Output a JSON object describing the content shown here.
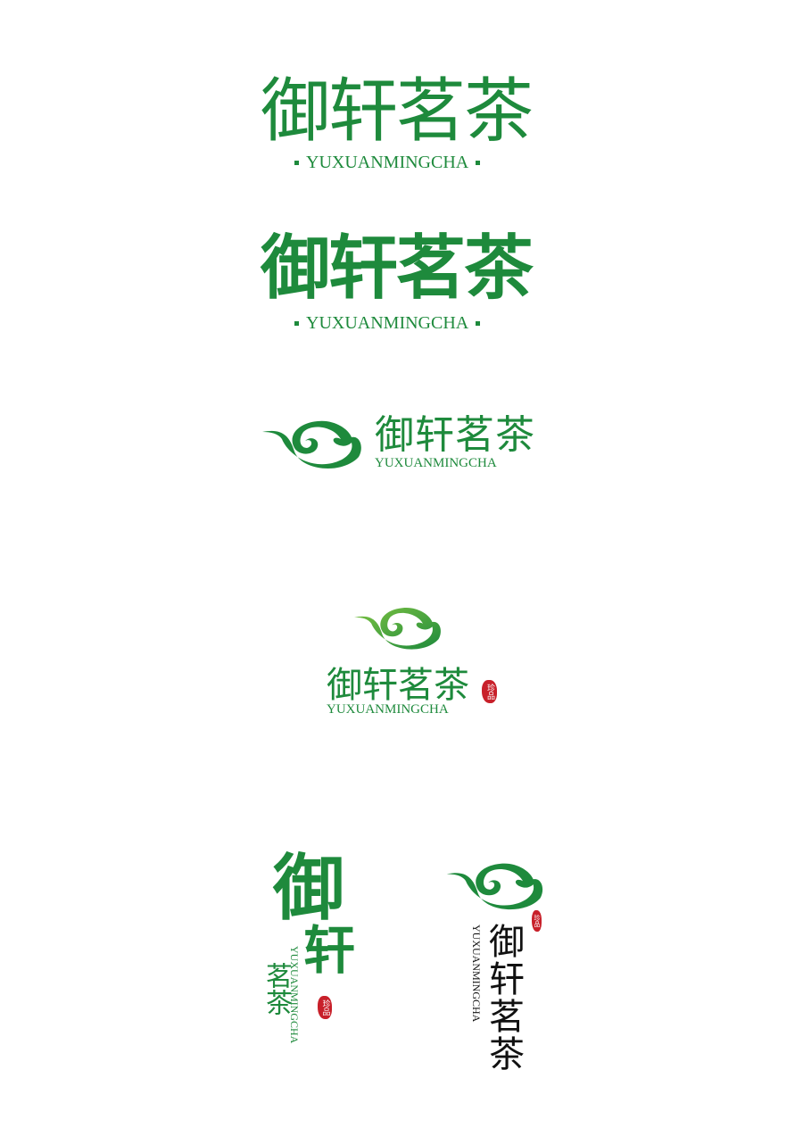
{
  "colors": {
    "green": "#1e8a3c",
    "light_green": "#7cc242",
    "red_seal": "#c8202a",
    "black": "#111111"
  },
  "logo1": {
    "name": "御轩茗茶",
    "pinyin": "YUXUANMINGCHA"
  },
  "logo2": {
    "name": "御轩茗茶",
    "pinyin": "YUXUANMINGCHA"
  },
  "logo3": {
    "name": "御轩茗茶",
    "pinyin": "YUXUANMINGCHA",
    "icon": "swirl-teapot-icon"
  },
  "logo4": {
    "name": "御轩茗茶",
    "pinyin": "YUXUANMINGCHA",
    "seal": "珍品",
    "icon": "swirl-teapot-icon"
  },
  "logo5": {
    "big_1": "御",
    "big_2": "轩",
    "small": "茗茶",
    "pinyin": "YUXUANMINGCHA",
    "seal": "珍品"
  },
  "logo6": {
    "name": "御轩茗茶",
    "pinyin": "YUXUANMINGCHA",
    "seal": "珍品",
    "icon": "swirl-teapot-icon"
  }
}
